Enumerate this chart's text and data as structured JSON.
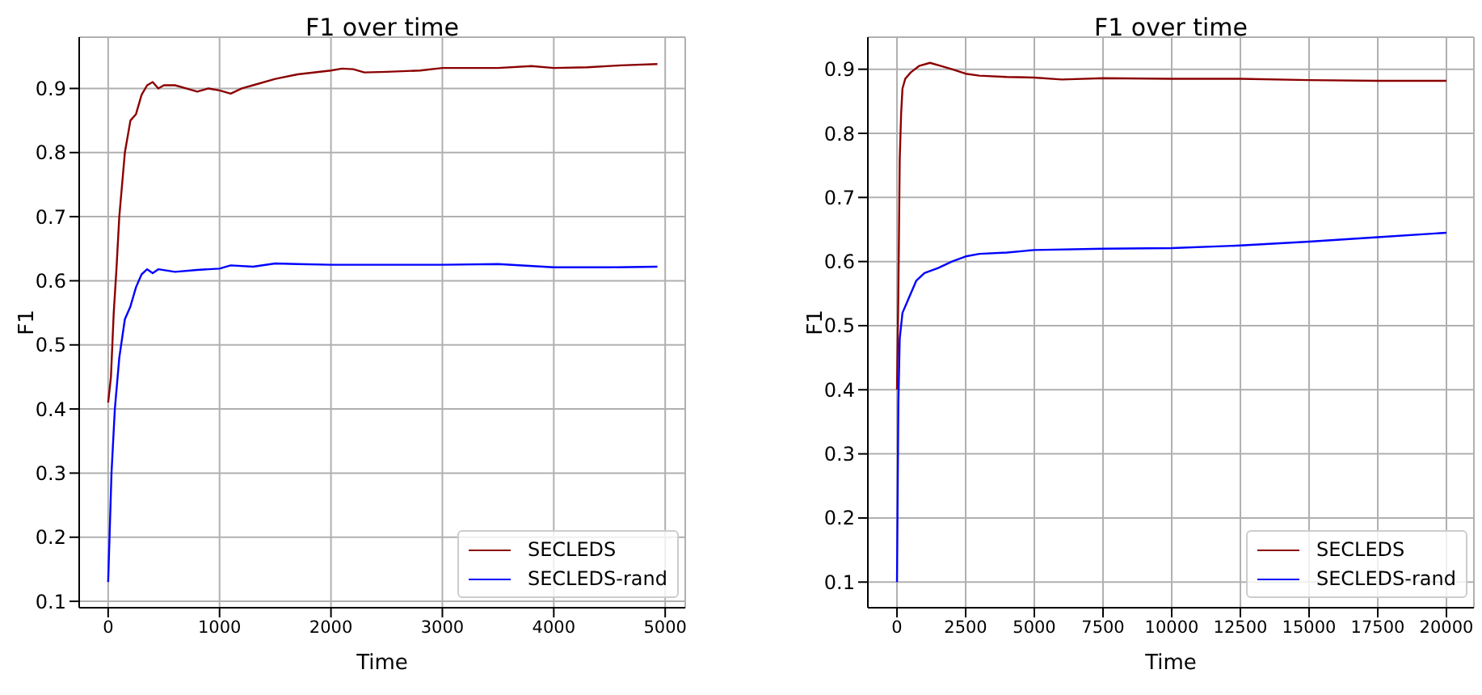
{
  "chart_data": [
    {
      "type": "line",
      "title": "F1 over time",
      "xlabel": "Time",
      "ylabel": "F1",
      "xlim": [
        -260,
        5180
      ],
      "xticks": [
        0,
        1000,
        2000,
        3000,
        4000,
        5000
      ],
      "ylim": [
        0.09,
        0.98
      ],
      "yticks": [
        0.1,
        0.2,
        0.3,
        0.4,
        0.5,
        0.6,
        0.7,
        0.8,
        0.9
      ],
      "grid": true,
      "legend": "bottom right",
      "marker": "none",
      "line_style": "solid",
      "series": [
        {
          "name": "SECLEDS",
          "color": "#8b0000",
          "x": [
            0,
            25,
            50,
            75,
            100,
            150,
            200,
            250,
            300,
            350,
            400,
            450,
            500,
            600,
            700,
            800,
            900,
            1000,
            1100,
            1200,
            1300,
            1500,
            1700,
            2000,
            2100,
            2200,
            2300,
            2500,
            2800,
            3000,
            3500,
            3800,
            4000,
            4300,
            4600,
            4930
          ],
          "values": [
            0.41,
            0.45,
            0.55,
            0.62,
            0.7,
            0.8,
            0.85,
            0.86,
            0.89,
            0.905,
            0.91,
            0.9,
            0.905,
            0.905,
            0.9,
            0.895,
            0.9,
            0.897,
            0.892,
            0.9,
            0.905,
            0.915,
            0.922,
            0.928,
            0.931,
            0.93,
            0.925,
            0.926,
            0.928,
            0.932,
            0.932,
            0.935,
            0.932,
            0.933,
            0.936,
            0.938
          ]
        },
        {
          "name": "SECLEDS-rand",
          "color": "#0000ff",
          "x": [
            0,
            30,
            60,
            100,
            150,
            200,
            250,
            300,
            350,
            400,
            450,
            600,
            800,
            1000,
            1100,
            1300,
            1500,
            1700,
            2000,
            2500,
            3000,
            3500,
            4000,
            4500,
            4930
          ],
          "values": [
            0.13,
            0.3,
            0.4,
            0.48,
            0.54,
            0.56,
            0.59,
            0.61,
            0.618,
            0.612,
            0.618,
            0.614,
            0.617,
            0.619,
            0.624,
            0.622,
            0.627,
            0.626,
            0.625,
            0.625,
            0.625,
            0.626,
            0.621,
            0.621,
            0.622
          ]
        }
      ]
    },
    {
      "type": "line",
      "title": "F1 over time",
      "xlabel": "Time",
      "ylabel": "F1",
      "xlim": [
        -1060,
        21000
      ],
      "xticks": [
        0,
        2500,
        5000,
        7500,
        10000,
        12500,
        15000,
        17500,
        20000
      ],
      "ylim": [
        0.06,
        0.95
      ],
      "yticks": [
        0.1,
        0.2,
        0.3,
        0.4,
        0.5,
        0.6,
        0.7,
        0.8,
        0.9
      ],
      "grid": true,
      "legend": "bottom right",
      "marker": "none",
      "line_style": "solid",
      "series": [
        {
          "name": "SECLEDS",
          "color": "#8b0000",
          "x": [
            0,
            50,
            100,
            150,
            200,
            300,
            500,
            800,
            1200,
            1600,
            2000,
            2500,
            3000,
            4000,
            5000,
            6000,
            7500,
            10000,
            12500,
            15000,
            17500,
            20000
          ],
          "values": [
            0.4,
            0.55,
            0.76,
            0.83,
            0.87,
            0.885,
            0.895,
            0.905,
            0.91,
            0.905,
            0.9,
            0.893,
            0.89,
            0.888,
            0.887,
            0.884,
            0.886,
            0.885,
            0.885,
            0.883,
            0.882,
            0.882
          ]
        },
        {
          "name": "SECLEDS-rand",
          "color": "#0000ff",
          "x": [
            0,
            50,
            100,
            200,
            400,
            700,
            1000,
            1500,
            2000,
            2500,
            3000,
            4000,
            5000,
            7500,
            10000,
            12500,
            15000,
            17500,
            20000
          ],
          "values": [
            0.1,
            0.38,
            0.48,
            0.52,
            0.54,
            0.57,
            0.582,
            0.59,
            0.6,
            0.608,
            0.612,
            0.614,
            0.618,
            0.62,
            0.621,
            0.625,
            0.631,
            0.638,
            0.645
          ]
        }
      ]
    }
  ]
}
